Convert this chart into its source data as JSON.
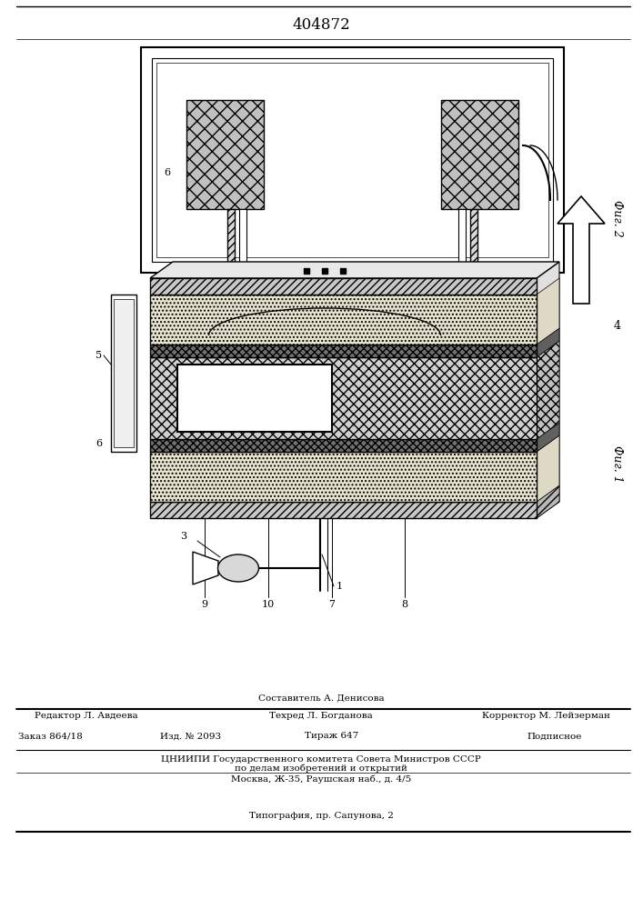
{
  "title": "404872",
  "bg_color": "#ffffff",
  "footer": {
    "line1_center": "Составитель А. Денисова",
    "line2_left": "Редактор Л. Авдеева",
    "line2_center": "Техред Л. Богданова",
    "line2_right": "Корректор М. Лейзерман",
    "line3_left": "Заказ 864/18",
    "line3_c1": "Изд. № 2093",
    "line3_c2": "Тираж 647",
    "line3_right": "Подписное",
    "line4": "ЦНИИПИ Государственного комитета Совета Министров СССР",
    "line5": "по делам изобретений и открытий",
    "line6": "Москва, Ж-35, Раушская наб., д. 4/5",
    "line7": "Типография, пр. Сапунова, 2"
  },
  "fig2_label": "Фиг. 2",
  "fig1_label": "Фиг. 1",
  "line_color": "#000000"
}
